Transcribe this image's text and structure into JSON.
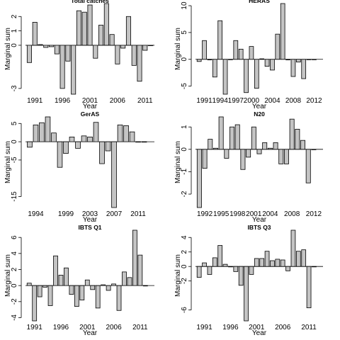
{
  "chart_data": [
    {
      "type": "bar",
      "title": "Total catches",
      "xlabel": "Year",
      "ylabel": "Marginal sum",
      "x": [
        1990,
        1991,
        1992,
        1993,
        1994,
        1995,
        1996,
        1997,
        1998,
        1999,
        2000,
        2001,
        2002,
        2003,
        2004,
        2005,
        2006,
        2007,
        2008,
        2009,
        2010,
        2011,
        2012
      ],
      "values": [
        -1.2,
        1.6,
        0.05,
        -0.15,
        -0.1,
        -0.6,
        -3.0,
        -1.1,
        -3.4,
        2.4,
        2.3,
        2.8,
        -0.9,
        1.4,
        2.9,
        0.75,
        -1.3,
        -0.2,
        2.0,
        -1.4,
        -2.5,
        -0.35,
        0
      ],
      "xticks": [
        "1991",
        "1996",
        "2001",
        "2006",
        "2011"
      ],
      "yticks": [
        "-3",
        "0",
        "1",
        "2"
      ],
      "ylim": [
        -3.4,
        2.9
      ]
    },
    {
      "type": "bar",
      "title": "HERAS",
      "xlabel": "Year",
      "ylabel": "Marginal sum",
      "x": [
        1990,
        1991,
        1992,
        1993,
        1994,
        1995,
        1996,
        1997,
        1998,
        1999,
        2000,
        2001,
        2002,
        2003,
        2004,
        2005,
        2006,
        2007,
        2008,
        2009,
        2010,
        2011,
        2012
      ],
      "values": [
        -0.4,
        3.5,
        -0.1,
        -3.3,
        7.2,
        -6.5,
        0,
        3.5,
        1.9,
        -6.2,
        2.4,
        -5.4,
        0.1,
        -1.3,
        -2.0,
        4.7,
        10.4,
        -0.1,
        -3.2,
        -0.5,
        -3.6,
        0,
        0
      ],
      "xticks": [
        "1991",
        "1994",
        "1997",
        "2000",
        "2004",
        "2008",
        "2012"
      ],
      "yticks": [
        "-5",
        "0",
        "5",
        "10"
      ],
      "ylim": [
        -6.5,
        10.4
      ]
    },
    {
      "type": "bar",
      "title": "GerAS",
      "xlabel": "Year",
      "ylabel": "Marginal sum",
      "x": [
        1993,
        1994,
        1995,
        1996,
        1997,
        1998,
        1999,
        2000,
        2001,
        2002,
        2003,
        2004,
        2005,
        2006,
        2007,
        2008,
        2009,
        2010,
        2011,
        2012
      ],
      "values": [
        -1.5,
        4.6,
        5.2,
        6.8,
        2.4,
        -7.0,
        -3.2,
        1.3,
        -1.8,
        1.6,
        1.3,
        5.3,
        -6.0,
        -2.5,
        -18.0,
        4.6,
        4.4,
        2.7,
        0,
        0
      ],
      "xticks": [
        "1994",
        "1999",
        "2003",
        "2007",
        "2011"
      ],
      "yticks": [
        "-15",
        "-5",
        "0",
        "5"
      ],
      "ylim": [
        -18.0,
        6.8
      ]
    },
    {
      "type": "bar",
      "title": "N20",
      "xlabel": "Year",
      "ylabel": "Marginal sum",
      "x": [
        1991,
        1992,
        1993,
        1994,
        1995,
        1996,
        1997,
        1998,
        1999,
        2000,
        2001,
        2002,
        2003,
        2004,
        2005,
        2006,
        2007,
        2008,
        2009,
        2010,
        2011,
        2012
      ],
      "values": [
        -2.6,
        -0.85,
        0.45,
        0.05,
        1.45,
        -0.4,
        1.0,
        1.1,
        -0.9,
        -0.35,
        1.0,
        -0.2,
        0.3,
        0.05,
        0.3,
        -0.65,
        -0.65,
        1.35,
        0.9,
        0.4,
        -1.5,
        0
      ],
      "xticks": [
        "1992",
        "1995",
        "1998",
        "2001",
        "2004",
        "2008",
        "2012"
      ],
      "yticks": [
        "-2",
        "-1",
        "0",
        "1"
      ],
      "ylim": [
        -2.6,
        1.45
      ]
    },
    {
      "type": "bar",
      "title": "IBTS Q1",
      "xlabel": "Year",
      "ylabel": "Marginal sum",
      "x": [
        1990,
        1991,
        1992,
        1993,
        1994,
        1995,
        1996,
        1997,
        1998,
        1999,
        2000,
        2001,
        2002,
        2003,
        2004,
        2005,
        2006,
        2007,
        2008,
        2009,
        2010,
        2011,
        2012
      ],
      "values": [
        0.3,
        -4.4,
        -1.4,
        -0.2,
        -2.5,
        3.7,
        1.3,
        2.2,
        -1.1,
        -2.6,
        -1.8,
        0.7,
        -0.5,
        -2.8,
        0.1,
        -0.6,
        0.2,
        -3.1,
        1.7,
        1.0,
        6.9,
        3.8,
        0
      ],
      "xticks": [
        "1991",
        "1996",
        "2001",
        "2006",
        "2011"
      ],
      "yticks": [
        "-4",
        "-2",
        "0",
        "2",
        "4",
        "6"
      ],
      "ylim": [
        -4.4,
        6.9
      ]
    },
    {
      "type": "bar",
      "title": "IBTS Q3",
      "xlabel": "Year",
      "ylabel": "Marginal sum",
      "x": [
        1990,
        1991,
        1992,
        1993,
        1994,
        1995,
        1996,
        1997,
        1998,
        1999,
        2000,
        2001,
        2002,
        2003,
        2004,
        2005,
        2006,
        2007,
        2008,
        2009,
        2010,
        2011,
        2012
      ],
      "values": [
        -1.5,
        0.5,
        -1.1,
        1.2,
        2.9,
        0.3,
        0,
        -0.7,
        -2.6,
        -7.5,
        -1.1,
        1.1,
        1.1,
        2.1,
        0.8,
        1.0,
        0.9,
        -0.6,
        5.0,
        2.1,
        2.3,
        -5.7,
        0
      ],
      "xticks": [
        "1991",
        "1996",
        "2001",
        "2006",
        "2011"
      ],
      "yticks": [
        "-6",
        "-2",
        "0",
        "2",
        "4"
      ],
      "ylim": [
        -7.5,
        5.0
      ]
    }
  ]
}
